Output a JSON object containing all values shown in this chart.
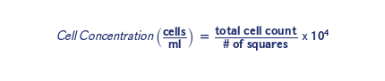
{
  "background_color": "#ffffff",
  "text_color": "#1b2a6b",
  "figsize": [
    4.31,
    0.91
  ],
  "dpi": 100,
  "font_size": 10.5
}
